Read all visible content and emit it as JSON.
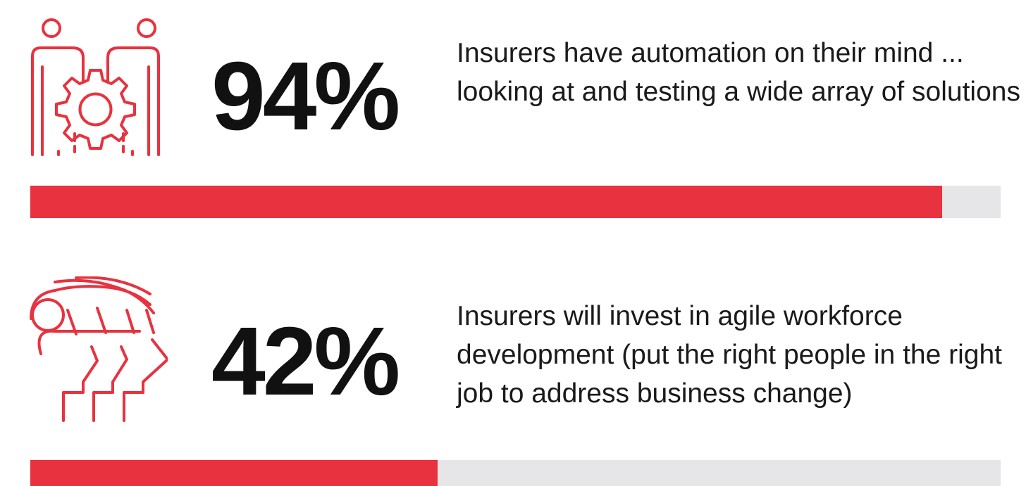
{
  "chart_data": {
    "type": "progress",
    "categories": [
      "Insurers have automation on their mind ... looking at and testing a wide array of solutions",
      "Insurers will invest in agile workforce development (put the right people in the right job to address business change)"
    ],
    "values": [
      94,
      42
    ],
    "value_labels": [
      "94%",
      "42%"
    ],
    "color": "#e8323f",
    "track_color": "#e6e6e8",
    "xlim": [
      0,
      100
    ]
  }
}
